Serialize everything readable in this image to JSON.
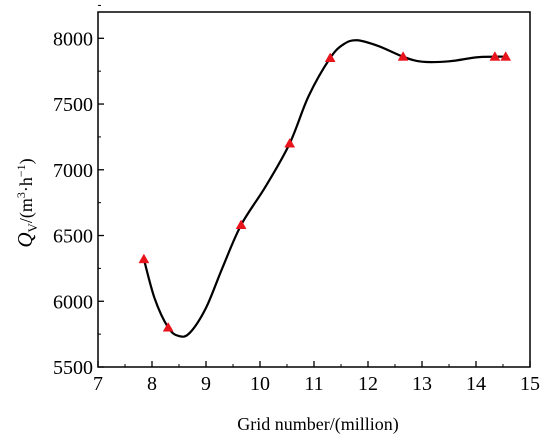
{
  "chart_data": {
    "type": "line",
    "title": "",
    "xlabel": "Grid number/(million)",
    "ylabel_parts": {
      "symbol": "Q",
      "subscript": "V",
      "unit_open": "/(m",
      "sup1": "3",
      "unit_mid": "·h",
      "sup2": "−1",
      "unit_close": ")"
    },
    "xlim": [
      7,
      15
    ],
    "ylim": [
      5500,
      8200
    ],
    "x_ticks": [
      7,
      8,
      9,
      10,
      11,
      12,
      13,
      14,
      15
    ],
    "y_ticks": [
      5500,
      6000,
      6500,
      7000,
      7500,
      8000
    ],
    "x_tick_labels": [
      "7",
      "8",
      "9",
      "10",
      "11",
      "12",
      "13",
      "14",
      "15"
    ],
    "y_tick_labels": [
      "5500",
      "6000",
      "6500",
      "7000",
      "7500",
      "8000"
    ],
    "grid": false,
    "series": [
      {
        "marker": "triangle",
        "marker_color": "#e8141c",
        "line_color": "#000000",
        "x": [
          7.85,
          8.3,
          9.65,
          10.55,
          11.3,
          12.65,
          14.35,
          14.55
        ],
        "y": [
          6320,
          5800,
          6580,
          7200,
          7850,
          7860,
          7860,
          7860
        ]
      }
    ],
    "curve": {
      "x": [
        7.85,
        8.05,
        8.3,
        8.5,
        8.7,
        9.0,
        9.3,
        9.65,
        10.1,
        10.55,
        10.9,
        11.3,
        11.55,
        11.8,
        12.2,
        12.65,
        13.0,
        13.5,
        14.0,
        14.35,
        14.55
      ],
      "y": [
        6320,
        6020,
        5800,
        5735,
        5760,
        5950,
        6250,
        6580,
        6870,
        7200,
        7560,
        7850,
        7955,
        7985,
        7940,
        7860,
        7822,
        7825,
        7855,
        7860,
        7860
      ]
    }
  }
}
